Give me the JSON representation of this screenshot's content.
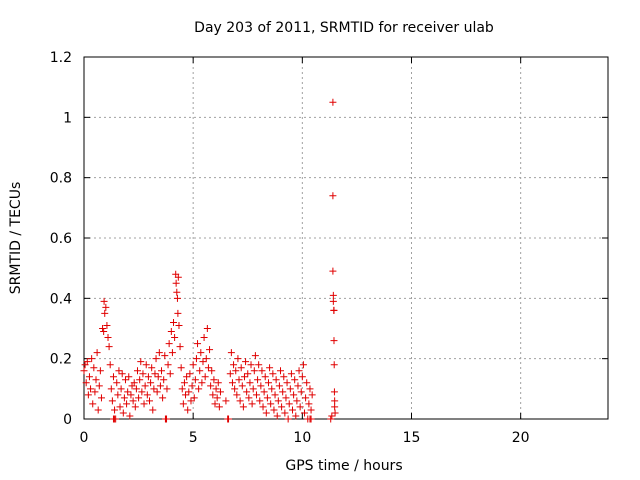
{
  "chart_data": {
    "type": "scatter",
    "title": "Day 203 of 2011, SRMTID for receiver ulab",
    "xlabel": "GPS time / hours",
    "ylabel": "SRMTID / TECUs",
    "xlim": [
      0,
      24
    ],
    "ylim": [
      0,
      1.2
    ],
    "x_ticks": [
      0,
      5,
      10,
      15,
      20
    ],
    "x_tick_labels": [
      "0",
      "5",
      "10",
      "15",
      "20"
    ],
    "y_ticks": [
      0,
      0.2,
      0.4,
      0.6,
      0.8,
      1.0,
      1.2
    ],
    "y_tick_labels": [
      "0",
      "0.2",
      "0.4",
      "0.6",
      "0.8",
      "1",
      "1.2"
    ],
    "grid": true,
    "marker": "+",
    "color": "#e00000",
    "series": [
      {
        "name": "SRMTID",
        "points": [
          [
            0.0,
            0.16
          ],
          [
            0.05,
            0.18
          ],
          [
            0.1,
            0.12
          ],
          [
            0.15,
            0.19
          ],
          [
            0.2,
            0.08
          ],
          [
            0.25,
            0.14
          ],
          [
            0.3,
            0.1
          ],
          [
            0.35,
            0.2
          ],
          [
            0.4,
            0.05
          ],
          [
            0.45,
            0.17
          ],
          [
            0.5,
            0.09
          ],
          [
            0.55,
            0.13
          ],
          [
            0.6,
            0.22
          ],
          [
            0.65,
            0.03
          ],
          [
            0.7,
            0.11
          ],
          [
            0.75,
            0.16
          ],
          [
            0.8,
            0.07
          ],
          [
            0.85,
            0.3
          ],
          [
            0.9,
            0.29
          ],
          [
            0.92,
            0.39
          ],
          [
            0.95,
            0.35
          ],
          [
            1.0,
            0.37
          ],
          [
            1.05,
            0.31
          ],
          [
            1.1,
            0.27
          ],
          [
            1.15,
            0.24
          ],
          [
            1.2,
            0.18
          ],
          [
            1.25,
            0.1
          ],
          [
            1.3,
            0.06
          ],
          [
            1.35,
            0.14
          ],
          [
            1.4,
            0.03
          ],
          [
            1.45,
            0.0
          ],
          [
            1.5,
            0.12
          ],
          [
            1.55,
            0.08
          ],
          [
            1.6,
            0.16
          ],
          [
            1.65,
            0.04
          ],
          [
            1.7,
            0.1
          ],
          [
            1.75,
            0.15
          ],
          [
            1.8,
            0.02
          ],
          [
            1.85,
            0.07
          ],
          [
            1.9,
            0.13
          ],
          [
            1.95,
            0.05
          ],
          [
            2.0,
            0.09
          ],
          [
            2.05,
            0.14
          ],
          [
            2.1,
            0.01
          ],
          [
            2.15,
            0.08
          ],
          [
            2.2,
            0.11
          ],
          [
            2.25,
            0.06
          ],
          [
            2.3,
            0.12
          ],
          [
            2.35,
            0.04
          ],
          [
            2.4,
            0.1
          ],
          [
            2.45,
            0.16
          ],
          [
            2.5,
            0.07
          ],
          [
            2.55,
            0.13
          ],
          [
            2.6,
            0.19
          ],
          [
            2.65,
            0.09
          ],
          [
            2.7,
            0.15
          ],
          [
            2.75,
            0.05
          ],
          [
            2.8,
            0.11
          ],
          [
            2.85,
            0.18
          ],
          [
            2.9,
            0.08
          ],
          [
            2.95,
            0.14
          ],
          [
            3.0,
            0.06
          ],
          [
            3.05,
            0.12
          ],
          [
            3.1,
            0.17
          ],
          [
            3.15,
            0.03
          ],
          [
            3.2,
            0.1
          ],
          [
            3.25,
            0.15
          ],
          [
            3.3,
            0.2
          ],
          [
            3.35,
            0.09
          ],
          [
            3.4,
            0.14
          ],
          [
            3.45,
            0.22
          ],
          [
            3.5,
            0.11
          ],
          [
            3.55,
            0.16
          ],
          [
            3.6,
            0.07
          ],
          [
            3.65,
            0.13
          ],
          [
            3.7,
            0.21
          ],
          [
            3.75,
            0.0
          ],
          [
            3.8,
            0.1
          ],
          [
            3.85,
            0.18
          ],
          [
            3.9,
            0.25
          ],
          [
            3.95,
            0.15
          ],
          [
            4.0,
            0.29
          ],
          [
            4.05,
            0.22
          ],
          [
            4.1,
            0.32
          ],
          [
            4.15,
            0.27
          ],
          [
            4.2,
            0.48
          ],
          [
            4.22,
            0.45
          ],
          [
            4.25,
            0.42
          ],
          [
            4.28,
            0.4
          ],
          [
            4.3,
            0.35
          ],
          [
            4.32,
            0.47
          ],
          [
            4.35,
            0.31
          ],
          [
            4.4,
            0.24
          ],
          [
            4.45,
            0.17
          ],
          [
            4.5,
            0.1
          ],
          [
            4.55,
            0.05
          ],
          [
            4.6,
            0.12
          ],
          [
            4.65,
            0.08
          ],
          [
            4.7,
            0.14
          ],
          [
            4.75,
            0.03
          ],
          [
            4.8,
            0.09
          ],
          [
            4.85,
            0.15
          ],
          [
            4.9,
            0.06
          ],
          [
            4.95,
            0.11
          ],
          [
            5.0,
            0.18
          ],
          [
            5.05,
            0.07
          ],
          [
            5.1,
            0.13
          ],
          [
            5.15,
            0.2
          ],
          [
            5.2,
            0.25
          ],
          [
            5.25,
            0.1
          ],
          [
            5.3,
            0.16
          ],
          [
            5.35,
            0.22
          ],
          [
            5.4,
            0.12
          ],
          [
            5.45,
            0.19
          ],
          [
            5.5,
            0.27
          ],
          [
            5.55,
            0.14
          ],
          [
            5.6,
            0.2
          ],
          [
            5.65,
            0.3
          ],
          [
            5.7,
            0.17
          ],
          [
            5.75,
            0.23
          ],
          [
            5.8,
            0.11
          ],
          [
            5.85,
            0.16
          ],
          [
            5.9,
            0.08
          ],
          [
            5.95,
            0.13
          ],
          [
            6.0,
            0.05
          ],
          [
            6.05,
            0.1
          ],
          [
            6.1,
            0.07
          ],
          [
            6.15,
            0.12
          ],
          [
            6.2,
            0.04
          ],
          [
            6.25,
            0.09
          ],
          [
            6.5,
            0.06
          ],
          [
            6.6,
            0.0
          ],
          [
            6.7,
            0.15
          ],
          [
            6.75,
            0.22
          ],
          [
            6.8,
            0.12
          ],
          [
            6.85,
            0.18
          ],
          [
            6.9,
            0.1
          ],
          [
            6.95,
            0.16
          ],
          [
            7.0,
            0.08
          ],
          [
            7.05,
            0.2
          ],
          [
            7.1,
            0.13
          ],
          [
            7.15,
            0.06
          ],
          [
            7.2,
            0.17
          ],
          [
            7.25,
            0.11
          ],
          [
            7.3,
            0.04
          ],
          [
            7.35,
            0.14
          ],
          [
            7.4,
            0.19
          ],
          [
            7.45,
            0.09
          ],
          [
            7.5,
            0.15
          ],
          [
            7.55,
            0.07
          ],
          [
            7.6,
            0.12
          ],
          [
            7.65,
            0.18
          ],
          [
            7.7,
            0.05
          ],
          [
            7.75,
            0.1
          ],
          [
            7.8,
            0.16
          ],
          [
            7.85,
            0.21
          ],
          [
            7.9,
            0.08
          ],
          [
            7.95,
            0.13
          ],
          [
            8.0,
            0.18
          ],
          [
            8.05,
            0.06
          ],
          [
            8.1,
            0.11
          ],
          [
            8.15,
            0.16
          ],
          [
            8.2,
            0.04
          ],
          [
            8.25,
            0.09
          ],
          [
            8.3,
            0.14
          ],
          [
            8.35,
            0.02
          ],
          [
            8.4,
            0.07
          ],
          [
            8.45,
            0.12
          ],
          [
            8.5,
            0.17
          ],
          [
            8.55,
            0.05
          ],
          [
            8.6,
            0.1
          ],
          [
            8.65,
            0.15
          ],
          [
            8.7,
            0.03
          ],
          [
            8.75,
            0.08
          ],
          [
            8.8,
            0.13
          ],
          [
            8.85,
            0.01
          ],
          [
            8.9,
            0.06
          ],
          [
            8.95,
            0.11
          ],
          [
            9.0,
            0.16
          ],
          [
            9.05,
            0.04
          ],
          [
            9.1,
            0.09
          ],
          [
            9.15,
            0.14
          ],
          [
            9.2,
            0.02
          ],
          [
            9.25,
            0.07
          ],
          [
            9.3,
            0.12
          ],
          [
            9.35,
            0.0
          ],
          [
            9.4,
            0.05
          ],
          [
            9.45,
            0.1
          ],
          [
            9.5,
            0.15
          ],
          [
            9.55,
            0.03
          ],
          [
            9.6,
            0.08
          ],
          [
            9.65,
            0.13
          ],
          [
            9.7,
            0.01
          ],
          [
            9.75,
            0.06
          ],
          [
            9.8,
            0.11
          ],
          [
            9.85,
            0.16
          ],
          [
            9.9,
            0.04
          ],
          [
            9.95,
            0.09
          ],
          [
            10.0,
            0.14
          ],
          [
            10.05,
            0.18
          ],
          [
            10.1,
            0.02
          ],
          [
            10.15,
            0.07
          ],
          [
            10.2,
            0.12
          ],
          [
            10.25,
            0.0
          ],
          [
            10.3,
            0.05
          ],
          [
            10.35,
            0.1
          ],
          [
            10.4,
            0.03
          ],
          [
            10.45,
            0.08
          ],
          [
            11.4,
            1.05
          ],
          [
            11.4,
            0.74
          ],
          [
            11.4,
            0.49
          ],
          [
            11.42,
            0.41
          ],
          [
            11.42,
            0.39
          ],
          [
            11.44,
            0.36
          ],
          [
            11.45,
            0.36
          ],
          [
            11.45,
            0.26
          ],
          [
            11.46,
            0.18
          ],
          [
            11.47,
            0.09
          ],
          [
            11.48,
            0.06
          ],
          [
            11.48,
            0.04
          ],
          [
            11.5,
            0.02
          ],
          [
            11.3,
            0.0
          ],
          [
            11.35,
            0.01
          ],
          [
            1.35,
            0.0
          ],
          [
            1.4,
            0.0
          ],
          [
            3.73,
            0.0
          ],
          [
            3.78,
            0.0
          ],
          [
            6.58,
            0.0
          ],
          [
            6.62,
            0.0
          ],
          [
            10.35,
            0.0
          ],
          [
            10.4,
            0.0
          ]
        ]
      }
    ]
  }
}
